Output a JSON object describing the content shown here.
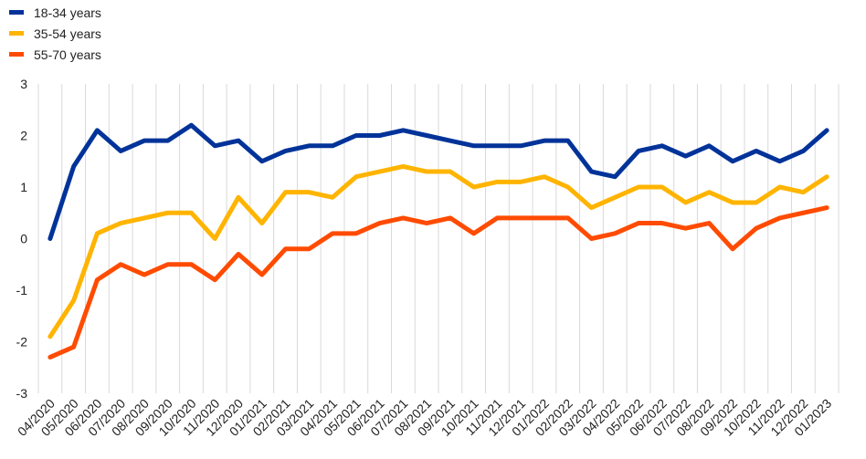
{
  "chart_data": {
    "type": "line",
    "title": "",
    "xlabel": "",
    "ylabel": "",
    "ylim": [
      -3,
      3
    ],
    "yticks": [
      3,
      2,
      1,
      0,
      -1,
      -2,
      -3
    ],
    "grid": "vertical",
    "legend_position": "top-left",
    "categories": [
      "04/2020",
      "05/2020",
      "06/2020",
      "07/2020",
      "08/2020",
      "09/2020",
      "10/2020",
      "11/2020",
      "12/2020",
      "01/2021",
      "02/2021",
      "03/2021",
      "04/2021",
      "05/2021",
      "06/2021",
      "07/2021",
      "08/2021",
      "09/2021",
      "10/2021",
      "11/2021",
      "12/2021",
      "01/2022",
      "02/2022",
      "03/2022",
      "04/2022",
      "05/2022",
      "06/2022",
      "07/2022",
      "08/2022",
      "09/2022",
      "10/2022",
      "11/2022",
      "12/2022",
      "01/2023"
    ],
    "series": [
      {
        "name": "18-34 years",
        "color": "#003399",
        "values": [
          0,
          1.4,
          2.1,
          1.7,
          1.9,
          1.9,
          2.2,
          1.8,
          1.9,
          1.5,
          1.7,
          1.8,
          1.8,
          2.0,
          2.0,
          2.1,
          2.0,
          1.9,
          1.8,
          1.8,
          1.8,
          1.9,
          1.9,
          1.3,
          1.2,
          1.7,
          1.8,
          1.6,
          1.8,
          1.5,
          1.7,
          1.5,
          1.7,
          2.1
        ]
      },
      {
        "name": "35-54 years",
        "color": "#FFB400",
        "values": [
          -1.9,
          -1.2,
          0.1,
          0.3,
          0.4,
          0.5,
          0.5,
          0,
          0.8,
          0.3,
          0.9,
          0.9,
          0.8,
          1.2,
          1.3,
          1.4,
          1.3,
          1.3,
          1.0,
          1.1,
          1.1,
          1.2,
          1.0,
          0.6,
          0.8,
          1.0,
          1.0,
          0.7,
          0.9,
          0.7,
          0.7,
          1.0,
          0.9,
          1.2
        ]
      },
      {
        "name": "55-70 years",
        "color": "#FF4B00",
        "values": [
          -2.3,
          -2.1,
          -0.8,
          -0.5,
          -0.7,
          -0.5,
          -0.5,
          -0.8,
          -0.3,
          -0.7,
          -0.2,
          -0.2,
          0.1,
          0.1,
          0.3,
          0.4,
          0.3,
          0.4,
          0.1,
          0.4,
          0.4,
          0.4,
          0.4,
          0,
          0.1,
          0.3,
          0.3,
          0.2,
          0.3,
          -0.2,
          0.2,
          0.4,
          0.5,
          0.6
        ]
      }
    ]
  }
}
